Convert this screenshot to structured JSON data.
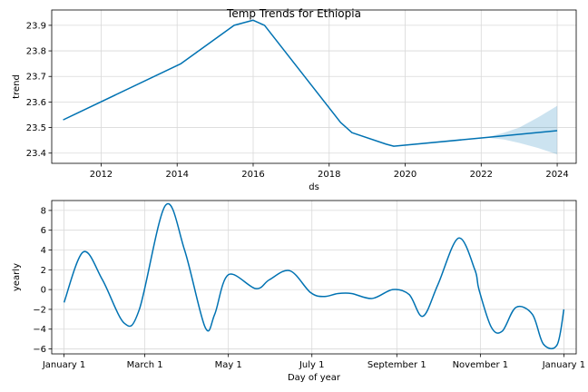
{
  "figure": {
    "title": "Temp Trends for Ethiopia"
  },
  "colors": {
    "line": "#0072B2",
    "band": "#0072B2",
    "grid": "#d9d9d9",
    "axis": "#000000"
  },
  "chart_data": [
    {
      "type": "line",
      "xlabel": "ds",
      "ylabel": "trend",
      "xlim": [
        2010.7,
        2024.5
      ],
      "ylim": [
        23.36,
        23.96
      ],
      "xticks": [
        2012,
        2014,
        2016,
        2018,
        2020,
        2022,
        2024
      ],
      "xtick_labels": [
        "2012",
        "2014",
        "2016",
        "2018",
        "2020",
        "2022",
        "2024"
      ],
      "yticks": [
        23.4,
        23.5,
        23.6,
        23.7,
        23.8,
        23.9
      ],
      "ytick_labels": [
        "23.4",
        "23.5",
        "23.6",
        "23.7",
        "23.8",
        "23.9"
      ],
      "grid": true,
      "series": [
        {
          "x": [
            2011.0,
            2014.1,
            2015.5,
            2016.0,
            2016.3,
            2018.3,
            2018.6,
            2019.5,
            2019.7,
            2022.2,
            2024.0
          ],
          "y": [
            23.53,
            23.75,
            23.9,
            23.92,
            23.9,
            23.52,
            23.48,
            23.435,
            23.427,
            23.462,
            23.488
          ]
        }
      ],
      "uncertainty_band": {
        "x": [
          2022.2,
          2022.6,
          2023.0,
          2023.5,
          2024.0
        ],
        "upper": [
          23.464,
          23.48,
          23.5,
          23.54,
          23.585
        ],
        "lower": [
          23.46,
          23.453,
          23.44,
          23.42,
          23.395
        ]
      }
    },
    {
      "type": "line",
      "xlabel": "Day of year",
      "ylabel": "yearly",
      "xlim": [
        -9,
        374
      ],
      "ylim": [
        -6.5,
        9
      ],
      "xticks": [
        0,
        59,
        120,
        181,
        243,
        304,
        365
      ],
      "xtick_labels": [
        "January 1",
        "March 1",
        "May 1",
        "July 1",
        "September 1",
        "November 1",
        "January 1"
      ],
      "yticks": [
        -6,
        -4,
        -2,
        0,
        2,
        4,
        6,
        8
      ],
      "ytick_labels": [
        "−6",
        "−4",
        "−2",
        "0",
        "2",
        "4",
        "6",
        "8"
      ],
      "grid": true,
      "series": [
        {
          "x": [
            0,
            14,
            28,
            44,
            55,
            74,
            88,
            103,
            110,
            120,
            140,
            150,
            165,
            180,
            190,
            200,
            210,
            225,
            240,
            252,
            262,
            273,
            288,
            300,
            303,
            312,
            320,
            330,
            342,
            350,
            360,
            365
          ],
          "y": [
            -1.3,
            3.8,
            1.0,
            -3.4,
            -2.0,
            8.5,
            4.0,
            -3.8,
            -2.5,
            1.5,
            0.1,
            1.0,
            1.9,
            -0.3,
            -0.7,
            -0.4,
            -0.4,
            -0.9,
            0.0,
            -0.5,
            -2.7,
            0.5,
            5.2,
            2.0,
            0.0,
            -3.8,
            -4.2,
            -1.8,
            -2.5,
            -5.5,
            -5.6,
            -2.0
          ]
        }
      ]
    }
  ]
}
